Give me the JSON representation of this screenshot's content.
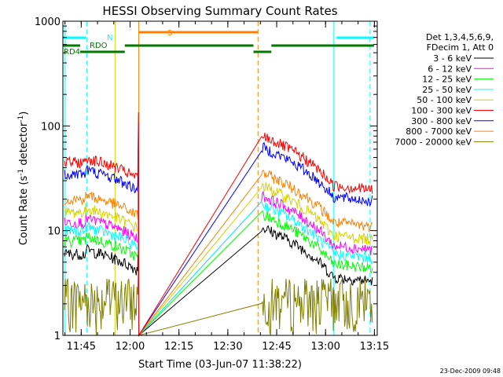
{
  "chart_data": {
    "type": "line",
    "title": "HESSI Observing Summary Count Rates",
    "xlabel": "Start Time (03-Jun-07 11:38:22)",
    "ylabel_parts": [
      "Count Rate (s",
      "-1",
      " detector",
      "-1",
      ")"
    ],
    "yscale": "log",
    "ylim": [
      1,
      1000
    ],
    "xlim_minutes": [
      -0.37,
      1.5,
      17.0,
      32.0,
      46.5,
      56.8,
      70.0,
      86.0,
      97.5
    ],
    "xtick_labels": [
      "11:45",
      "12:00",
      "12:15",
      "12:30",
      "12:45",
      "13:00",
      "13:15"
    ],
    "ytick_labels": [
      "1",
      "10",
      "100",
      "1000"
    ],
    "legend_header": [
      "Det 1,3,4,5,6,9,",
      "FDecim 1, Att 0"
    ],
    "legend": [
      {
        "label": "3 - 6 keV",
        "color": "#000000"
      },
      {
        "label": "6 - 12 keV",
        "color": "#ff00ff"
      },
      {
        "label": "12 - 25 keV",
        "color": "#00ff00"
      },
      {
        "label": "25 - 50 keV",
        "color": "#00ffff"
      },
      {
        "label": "50 - 100 keV",
        "color": "#d4d400"
      },
      {
        "label": "100 - 300 keV",
        "color": "#ff0000"
      },
      {
        "label": "300 - 800 keV",
        "color": "#0000ff"
      },
      {
        "label": "800 - 7000 keV",
        "color": "#ff8000"
      },
      {
        "label": "7000 - 20000 keV",
        "color": "#808000"
      }
    ],
    "flags": {
      "N": {
        "label": "N",
        "color": "#00ffff"
      },
      "RDO": {
        "label": "RDO",
        "color": "#007a00"
      },
      "RD4": {
        "label": "RD4",
        "color": "#007a00"
      },
      "S": {
        "label": "S",
        "color": "#ff8000"
      }
    },
    "footer": "23-Dec-2009 09:48"
  }
}
